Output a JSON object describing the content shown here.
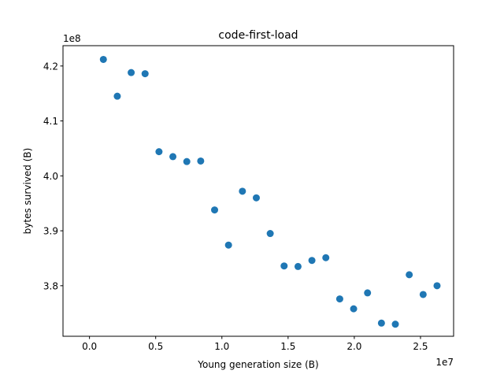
{
  "chart_data": {
    "type": "scatter",
    "title": "code-first-load",
    "xlabel": "Young generation size (B)",
    "ylabel": "bytes survived (B)",
    "x_offset_label": "1e7",
    "y_offset_label": "1e8",
    "xlim": [
      -2000000,
      27500000
    ],
    "ylim": [
      370800000,
      423700000
    ],
    "x_ticks": [
      0,
      5000000,
      10000000,
      15000000,
      20000000,
      25000000
    ],
    "x_tick_labels": [
      "0.0",
      "0.5",
      "1.0",
      "1.5",
      "2.0",
      "2.5"
    ],
    "y_ticks": [
      380000000,
      390000000,
      400000000,
      410000000,
      420000000
    ],
    "y_tick_labels": [
      "3.8",
      "3.9",
      "4.0",
      "4.1",
      "4.2"
    ],
    "grid": false,
    "marker_color": "#1f77b4",
    "series": [
      {
        "points": [
          {
            "x": 1050000,
            "y": 421200000
          },
          {
            "x": 2100000,
            "y": 414500000
          },
          {
            "x": 3150000,
            "y": 418800000
          },
          {
            "x": 4200000,
            "y": 418600000
          },
          {
            "x": 5250000,
            "y": 404400000
          },
          {
            "x": 6300000,
            "y": 403500000
          },
          {
            "x": 7350000,
            "y": 402600000
          },
          {
            "x": 8400000,
            "y": 402700000
          },
          {
            "x": 9450000,
            "y": 393800000
          },
          {
            "x": 10500000,
            "y": 387400000
          },
          {
            "x": 11550000,
            "y": 397200000
          },
          {
            "x": 12600000,
            "y": 396000000
          },
          {
            "x": 13650000,
            "y": 389500000
          },
          {
            "x": 14700000,
            "y": 383600000
          },
          {
            "x": 15750000,
            "y": 383500000
          },
          {
            "x": 16800000,
            "y": 384600000
          },
          {
            "x": 17850000,
            "y": 385100000
          },
          {
            "x": 18900000,
            "y": 377600000
          },
          {
            "x": 19950000,
            "y": 375800000
          },
          {
            "x": 21000000,
            "y": 378700000
          },
          {
            "x": 22050000,
            "y": 373200000
          },
          {
            "x": 23100000,
            "y": 373000000
          },
          {
            "x": 24150000,
            "y": 382000000
          },
          {
            "x": 25200000,
            "y": 378400000
          },
          {
            "x": 26250000,
            "y": 380000000
          }
        ]
      }
    ]
  }
}
